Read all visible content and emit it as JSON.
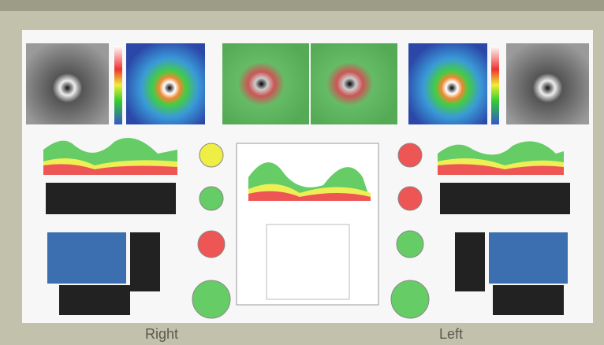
{
  "captions": {
    "right": "Right",
    "left": "Left"
  }
}
